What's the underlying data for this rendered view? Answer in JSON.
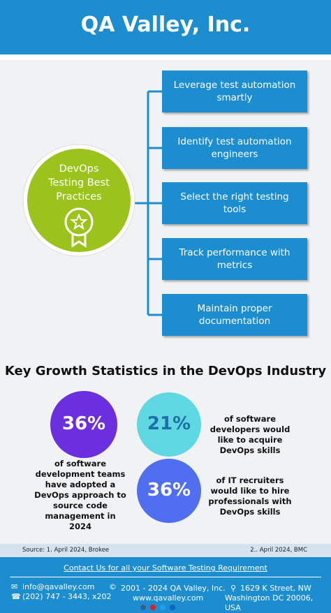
{
  "header": {
    "title": "QA Valley, Inc."
  },
  "mindmap": {
    "center": "DevOps Testing Best Practices",
    "items": [
      "Leverage test automation smartly",
      "Identify test automation engineers",
      "Select the right testing tools",
      "Track performance with metrics",
      "Maintain proper documentation"
    ]
  },
  "stats": {
    "title": "Key Growth Statistics in the DevOps Industry",
    "items": [
      {
        "value": "36%",
        "text": "of software development teams have adopted a DevOps approach to source code management in 2024"
      },
      {
        "value": "21%",
        "text": "of software developers would like to acquire DevOps skills"
      },
      {
        "value": "36%",
        "text": "of IT recruiters would like to hire professionals with DevOps skills"
      }
    ]
  },
  "sources": {
    "left": "Source: 1. April 2024, Brokee",
    "right": "2.. April 2024, BMC"
  },
  "footer": {
    "cta": "Contact Us for all your Software Testing Requirement",
    "email": "info@qavalley.com",
    "phone": "(202) 747 - 3443, x202",
    "copyright": "2001 - 2024 QA Valley, Inc.",
    "website": "www.qavalley.com",
    "address1": "1629 K Street, NW",
    "address2": "Washington DC 20006, USA"
  }
}
